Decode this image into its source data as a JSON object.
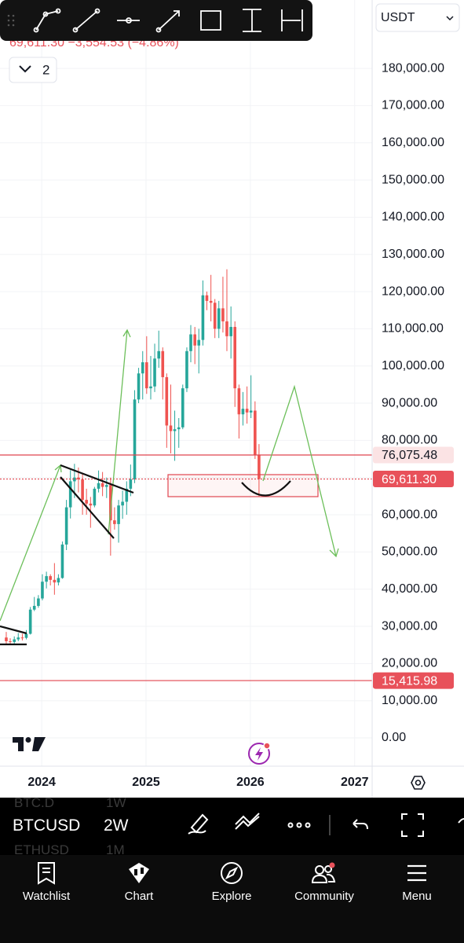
{
  "header": {
    "quote": "69,611.30 −3,554.53 (−4.86%)",
    "layout_count": "2",
    "currency": "USDT"
  },
  "chart_data": {
    "type": "candlestick",
    "x": [
      2023.66,
      2023.698,
      2023.737,
      2023.775,
      2023.814,
      2023.852,
      2023.891,
      2023.929,
      2023.968,
      2024.006,
      2024.045,
      2024.083,
      2024.122,
      2024.16,
      2024.198,
      2024.237,
      2024.275,
      2024.314,
      2024.352,
      2024.391,
      2024.429,
      2024.468,
      2024.506,
      2024.545,
      2024.583,
      2024.622,
      2024.66,
      2024.698,
      2024.737,
      2024.775,
      2024.814,
      2024.852,
      2024.891,
      2024.929,
      2024.968,
      2025.006,
      2025.045,
      2025.083,
      2025.122,
      2025.16,
      2025.198,
      2025.237,
      2025.275,
      2025.314,
      2025.352,
      2025.391,
      2025.429,
      2025.468,
      2025.506,
      2025.545,
      2025.583,
      2025.622,
      2025.66,
      2025.698,
      2025.737,
      2025.775,
      2025.814,
      2025.852,
      2025.891,
      2025.929,
      2025.968,
      2026.006,
      2026.045,
      2026.083
    ],
    "open": [
      27000,
      26000,
      25800,
      26500,
      27000,
      26900,
      28000,
      34500,
      35500,
      37500,
      42000,
      43500,
      42500,
      41800,
      43000,
      52000,
      62000,
      69000,
      70000,
      69500,
      64000,
      63000,
      62500,
      67000,
      68500,
      67500,
      68000,
      58500,
      57500,
      62500,
      63500,
      67000,
      69500,
      91000,
      98000,
      101000,
      94000,
      94500,
      102000,
      104000,
      97000,
      84000,
      82500,
      83000,
      83500,
      94000,
      104000,
      108500,
      105500,
      107000,
      119000,
      117500,
      117000,
      110000,
      115500,
      112000,
      108000,
      110500,
      94000,
      87000,
      88500,
      87500,
      88000,
      76000
    ],
    "high": [
      28500,
      26800,
      27300,
      28200,
      28000,
      29000,
      35200,
      37900,
      38400,
      44000,
      44700,
      44000,
      47000,
      44000,
      52800,
      64000,
      72000,
      73700,
      72700,
      71000,
      67000,
      64800,
      67500,
      71900,
      71500,
      70000,
      70000,
      62000,
      64000,
      66500,
      69000,
      73500,
      93500,
      99500,
      104000,
      108000,
      102700,
      106000,
      109500,
      105000,
      98000,
      95000,
      88000,
      86000,
      95000,
      105000,
      111000,
      110500,
      110000,
      123000,
      120000,
      124500,
      118000,
      117500,
      124000,
      126000,
      116000,
      112000,
      95000,
      93000,
      94500,
      97500,
      90500,
      79000
    ],
    "low": [
      25000,
      25000,
      25200,
      26000,
      26200,
      26500,
      27800,
      34100,
      35000,
      37000,
      40200,
      41000,
      38500,
      41000,
      42800,
      50500,
      59000,
      64500,
      66000,
      60000,
      60000,
      56500,
      62000,
      66000,
      65000,
      64500,
      49000,
      56000,
      52500,
      58900,
      60000,
      65000,
      68500,
      90000,
      91000,
      92500,
      91000,
      93000,
      99500,
      91000,
      78000,
      76500,
      74500,
      78000,
      83000,
      93000,
      101000,
      100500,
      98000,
      105500,
      115000,
      112000,
      107500,
      107500,
      109000,
      104000,
      102000,
      89000,
      80500,
      84000,
      84500,
      86000,
      75000,
      65000
    ],
    "close": [
      26000,
      25800,
      26500,
      27000,
      26900,
      28000,
      34500,
      35500,
      37500,
      42000,
      43500,
      42500,
      41800,
      43000,
      52000,
      62000,
      69000,
      70000,
      69500,
      64000,
      63000,
      62500,
      67000,
      68500,
      67500,
      68000,
      58500,
      57500,
      62500,
      63500,
      67000,
      69500,
      91000,
      98000,
      101000,
      94000,
      94500,
      102000,
      104000,
      97000,
      84000,
      82500,
      83000,
      83500,
      94000,
      104000,
      108500,
      105500,
      107000,
      119000,
      117500,
      117000,
      110000,
      115500,
      112000,
      108000,
      110500,
      94000,
      87000,
      88500,
      87500,
      88000,
      76000,
      69611.3
    ],
    "up_color": "#26a69a",
    "down_color": "#ef5350",
    "xlim": [
      2023.6,
      2027.16
    ],
    "xticks": [
      2024,
      2025,
      2026,
      2027
    ],
    "ylim": [
      -7600,
      198400
    ],
    "yticks": [
      {
        "value": 0,
        "label": "0.00"
      },
      {
        "value": 10000,
        "label": "10,000.00"
      },
      {
        "value": 20000,
        "label": "20,000.00"
      },
      {
        "value": 30000,
        "label": "30,000.00"
      },
      {
        "value": 40000,
        "label": "40,000.00"
      },
      {
        "value": 50000,
        "label": "50,000.00"
      },
      {
        "value": 60000,
        "label": "60,000.00"
      },
      {
        "value": 70000,
        "label": "70,000.00"
      },
      {
        "value": 80000,
        "label": "80,000.00"
      },
      {
        "value": 90000,
        "label": "90,000.00"
      },
      {
        "value": 100000,
        "label": "100,000.00"
      },
      {
        "value": 110000,
        "label": "110,000.00"
      },
      {
        "value": 120000,
        "label": "120,000.00"
      },
      {
        "value": 130000,
        "label": "130,000.00"
      },
      {
        "value": 140000,
        "label": "140,000.00"
      },
      {
        "value": 150000,
        "label": "150,000.00"
      },
      {
        "value": 160000,
        "label": "160,000.00"
      },
      {
        "value": 170000,
        "label": "170,000.00"
      },
      {
        "value": 180000,
        "label": "180,000.00"
      }
    ],
    "grid": true,
    "price_lines": [
      {
        "value": 76075.48,
        "label": "76,075.48",
        "style": "solid",
        "color": "#e0454f",
        "badge_fill": "#fbe3e4",
        "badge_text": "#131722"
      },
      {
        "value": 69611.3,
        "label": "69,611.30",
        "style": "dotted",
        "color": "#e0454f",
        "badge_fill": "#e8515a",
        "badge_text": "#ffffff"
      },
      {
        "value": 15415.98,
        "label": "15,415.98",
        "style": "solid",
        "color": "#e0454f",
        "badge_fill": "#e8515a",
        "badge_text": "#ffffff"
      }
    ]
  },
  "symbol_bar": {
    "symbol": "BTCUSD",
    "interval": "2W",
    "watch": [
      {
        "symbol": "BTC.D",
        "interval": "1W"
      },
      {
        "symbol": "ETHUSD",
        "interval": "1M"
      }
    ]
  },
  "tabs": [
    "Watchlist",
    "Chart",
    "Explore",
    "Community",
    "Menu"
  ]
}
